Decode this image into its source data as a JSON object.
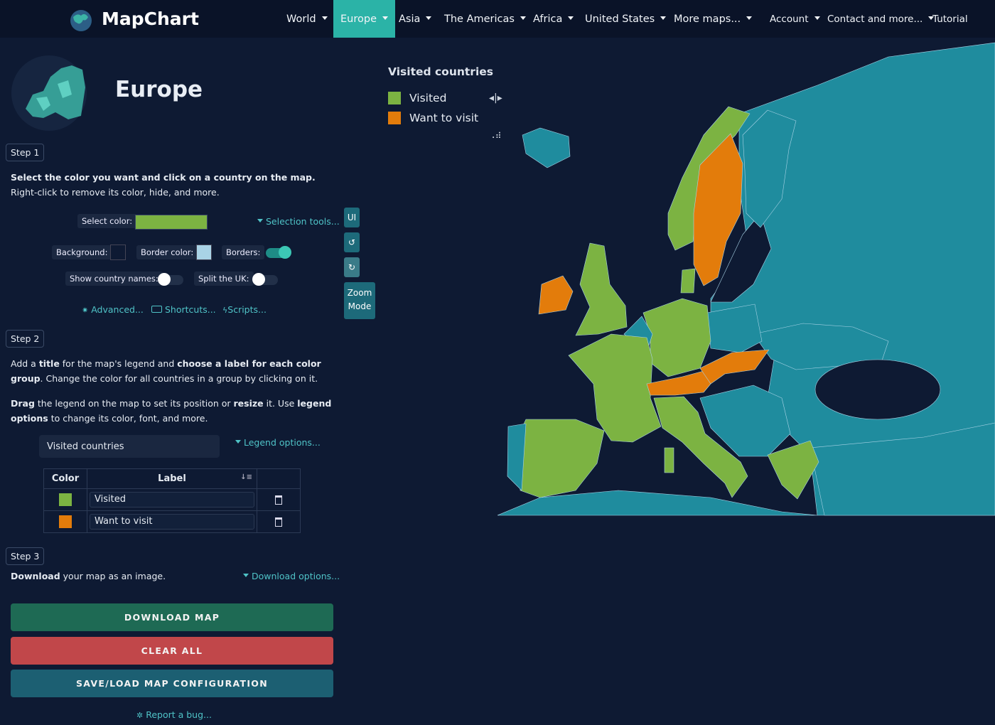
{
  "nav": {
    "brand": "MapChart",
    "items": [
      "World",
      "Europe",
      "Asia",
      "The Americas",
      "Africa",
      "United States",
      "More maps...",
      "Account",
      "Contact and more...",
      "Tutorial"
    ],
    "active_index": 1
  },
  "sidebar": {
    "title": "Europe",
    "step1": {
      "label": "Step 1",
      "instructions": [
        {
          "text": "Select the color you want and click on a country on the map.",
          "bold": true
        },
        {
          "text": " Right-click to remove its color, hide, and more.",
          "bold": false
        }
      ],
      "select_color_label": "Select color:",
      "selected_color": "#7cb342",
      "selection_tools": "Selection tools...",
      "background_label": "Background:",
      "background_color": "#0e1a33",
      "border_color_label": "Border color:",
      "border_color": "#a9d3e6",
      "borders_label": "Borders:",
      "borders_on": true,
      "show_names_label": "Show country names:",
      "show_names_on": false,
      "split_uk_label": "Split the UK:",
      "split_uk_on": false,
      "links": [
        "Advanced...",
        "Shortcuts...",
        "Scripts..."
      ]
    },
    "step2": {
      "label": "Step 2",
      "paragraph1": [
        {
          "text": "Add a ",
          "bold": false
        },
        {
          "text": "title",
          "bold": true
        },
        {
          "text": " for the map's legend and ",
          "bold": false
        },
        {
          "text": "choose a label for each color group",
          "bold": true
        },
        {
          "text": ". Change the color for all countries in a group by clicking on it.",
          "bold": false
        }
      ],
      "paragraph2": [
        {
          "text": "Drag",
          "bold": true
        },
        {
          "text": " the legend on the map to set its position or ",
          "bold": false
        },
        {
          "text": "resize",
          "bold": true
        },
        {
          "text": " it. Use ",
          "bold": false
        },
        {
          "text": "legend options",
          "bold": true
        },
        {
          "text": " to change its color, font, and more.",
          "bold": false
        }
      ],
      "legend_title_input": "Visited countries",
      "legend_options": "Legend options...",
      "table": {
        "headers": [
          "Color",
          "Label"
        ],
        "rows": [
          {
            "color": "#7cb342",
            "label": "Visited"
          },
          {
            "color": "#e37c0b",
            "label": "Want to visit"
          }
        ]
      }
    },
    "step3": {
      "label": "Step 3",
      "instructions": [
        {
          "text": "Download",
          "bold": true
        },
        {
          "text": " your map as an image.",
          "bold": false
        }
      ],
      "download_options": "Download options..."
    },
    "buttons": [
      "DOWNLOAD MAP",
      "CLEAR ALL",
      "SAVE/LOAD MAP CONFIGURATION"
    ],
    "report_bug": "Report a bug..."
  },
  "tools": {
    "ui": "UI",
    "zoom_mode": "Zoom Mode"
  },
  "map_legend": {
    "title": "Visited countries",
    "items": [
      {
        "color": "#7cb342",
        "label": "Visited"
      },
      {
        "color": "#e37c0b",
        "label": "Want to visit"
      }
    ]
  }
}
